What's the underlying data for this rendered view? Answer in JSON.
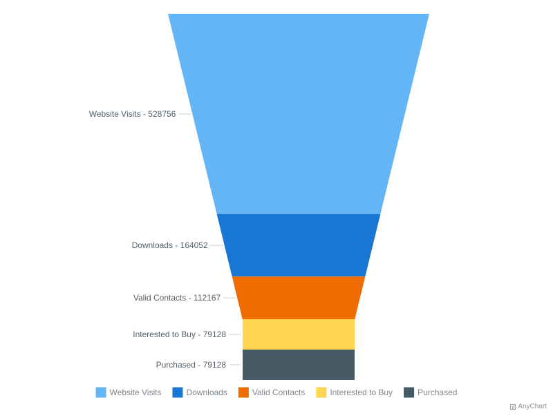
{
  "chart_data": {
    "type": "funnel",
    "categories": [
      "Website Visits",
      "Downloads",
      "Valid Contacts",
      "Interested to Buy",
      "Purchased"
    ],
    "values": [
      528756,
      164052,
      112167,
      79128,
      79128
    ],
    "point_labels": [
      "Website Visits - 528756",
      "Downloads - 164052",
      "Valid Contacts - 112167",
      "Interested to Buy - 79128",
      "Purchased - 79128"
    ],
    "colors": [
      "#64b5f6",
      "#1976d2",
      "#ef6c00",
      "#ffd54f",
      "#455a64"
    ],
    "legend": {
      "position": "bottom",
      "items": [
        "Website Visits",
        "Downloads",
        "Valid Contacts",
        "Interested to Buy",
        "Purchased"
      ]
    }
  },
  "credits": {
    "text": "AnyChart",
    "icon": "chart-icon"
  }
}
